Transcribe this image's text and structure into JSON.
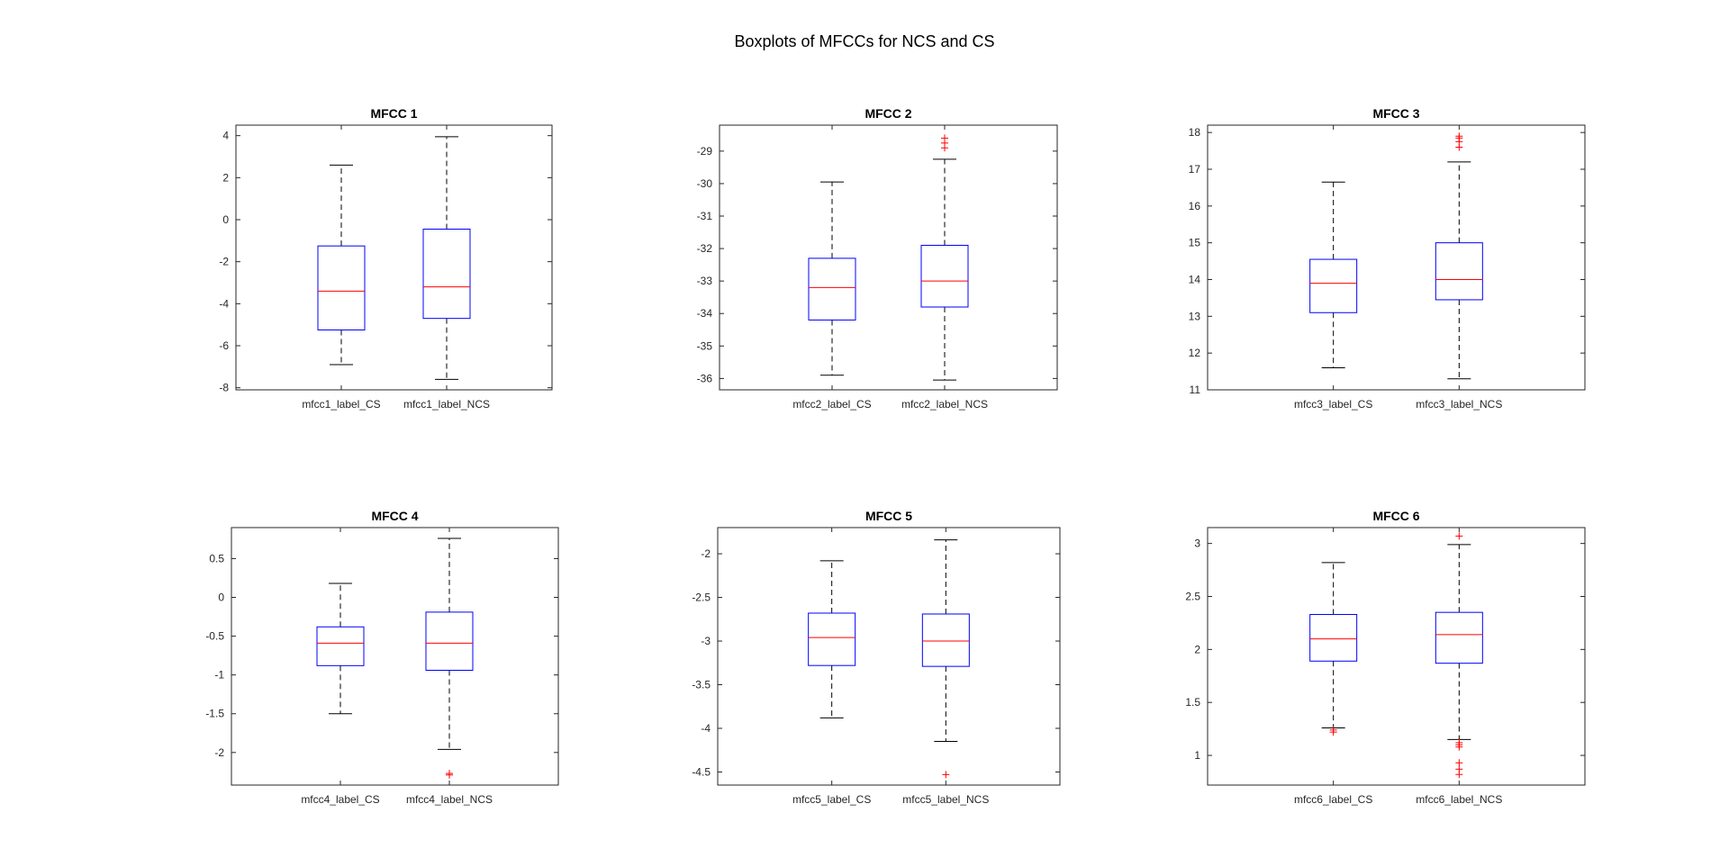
{
  "figure": {
    "suptitle": "Boxplots of MFCCs for NCS and CS"
  },
  "chart_data": [
    {
      "type": "boxplot",
      "title": "MFCC 1",
      "ylim": [
        -8.1,
        4.5
      ],
      "yticks": [
        -8,
        -6,
        -4,
        -2,
        0,
        2,
        4
      ],
      "categories": [
        "mfcc1_label_CS",
        "mfcc1_label_NCS"
      ],
      "boxes": [
        {
          "whisker_low": -6.9,
          "q1": -5.25,
          "median": -3.4,
          "q3": -1.25,
          "whisker_high": 2.6,
          "outliers": []
        },
        {
          "whisker_low": -7.6,
          "q1": -4.7,
          "median": -3.2,
          "q3": -0.45,
          "whisker_high": 3.95,
          "outliers": []
        }
      ],
      "colors": {
        "box": "#0000ff",
        "median": "#ff0000",
        "whisker": "#000000",
        "outlier": "#ff0000"
      }
    },
    {
      "type": "boxplot",
      "title": "MFCC 2",
      "ylim": [
        -36.35,
        -28.2
      ],
      "yticks": [
        -36,
        -35,
        -34,
        -33,
        -32,
        -31,
        -30,
        -29
      ],
      "categories": [
        "mfcc2_label_CS",
        "mfcc2_label_NCS"
      ],
      "boxes": [
        {
          "whisker_low": -35.9,
          "q1": -34.2,
          "median": -33.2,
          "q3": -32.3,
          "whisker_high": -29.95,
          "outliers": []
        },
        {
          "whisker_low": -36.05,
          "q1": -33.8,
          "median": -33.0,
          "q3": -31.9,
          "whisker_high": -29.25,
          "outliers": [
            -28.6,
            -28.75,
            -28.9
          ]
        }
      ],
      "colors": {
        "box": "#0000ff",
        "median": "#ff0000",
        "whisker": "#000000",
        "outlier": "#ff0000"
      }
    },
    {
      "type": "boxplot",
      "title": "MFCC 3",
      "ylim": [
        11,
        18.2
      ],
      "yticks": [
        11,
        12,
        13,
        14,
        15,
        16,
        17,
        18
      ],
      "categories": [
        "mfcc3_label_CS",
        "mfcc3_label_NCS"
      ],
      "boxes": [
        {
          "whisker_low": 11.6,
          "q1": 13.1,
          "median": 13.9,
          "q3": 14.55,
          "whisker_high": 16.65,
          "outliers": []
        },
        {
          "whisker_low": 11.3,
          "q1": 13.45,
          "median": 14.0,
          "q3": 15.0,
          "whisker_high": 17.2,
          "outliers": [
            17.6,
            17.75,
            17.85,
            17.9
          ]
        }
      ],
      "colors": {
        "box": "#0000ff",
        "median": "#ff0000",
        "whisker": "#000000",
        "outlier": "#ff0000"
      }
    },
    {
      "type": "boxplot",
      "title": "MFCC 4",
      "ylim": [
        -2.42,
        0.9
      ],
      "yticks": [
        -2,
        -1.5,
        -1,
        -0.5,
        0,
        0.5
      ],
      "categories": [
        "mfcc4_label_CS",
        "mfcc4_label_NCS"
      ],
      "boxes": [
        {
          "whisker_low": -1.5,
          "q1": -0.88,
          "median": -0.59,
          "q3": -0.38,
          "whisker_high": 0.18,
          "outliers": []
        },
        {
          "whisker_low": -1.96,
          "q1": -0.94,
          "median": -0.59,
          "q3": -0.19,
          "whisker_high": 0.76,
          "outliers": [
            -2.27,
            -2.29
          ]
        }
      ],
      "colors": {
        "box": "#0000ff",
        "median": "#ff0000",
        "whisker": "#000000",
        "outlier": "#ff0000"
      }
    },
    {
      "type": "boxplot",
      "title": "MFCC 5",
      "ylim": [
        -4.65,
        -1.7
      ],
      "yticks": [
        -4.5,
        -4,
        -3.5,
        -3,
        -2.5,
        -2
      ],
      "categories": [
        "mfcc5_label_CS",
        "mfcc5_label_NCS"
      ],
      "boxes": [
        {
          "whisker_low": -3.88,
          "q1": -3.28,
          "median": -2.96,
          "q3": -2.68,
          "whisker_high": -2.08,
          "outliers": []
        },
        {
          "whisker_low": -4.15,
          "q1": -3.29,
          "median": -3.0,
          "q3": -2.69,
          "whisker_high": -1.84,
          "outliers": [
            -4.53
          ]
        }
      ],
      "colors": {
        "box": "#0000ff",
        "median": "#ff0000",
        "whisker": "#000000",
        "outlier": "#ff0000"
      }
    },
    {
      "type": "boxplot",
      "title": "MFCC 6",
      "ylim": [
        0.72,
        3.15
      ],
      "yticks": [
        1,
        1.5,
        2,
        2.5,
        3
      ],
      "categories": [
        "mfcc6_label_CS",
        "mfcc6_label_NCS"
      ],
      "boxes": [
        {
          "whisker_low": 1.26,
          "q1": 1.89,
          "median": 2.1,
          "q3": 2.33,
          "whisker_high": 2.82,
          "outliers": [
            1.22,
            1.24
          ]
        },
        {
          "whisker_low": 1.15,
          "q1": 1.87,
          "median": 2.14,
          "q3": 2.35,
          "whisker_high": 2.99,
          "outliers": [
            3.07,
            1.12,
            1.1,
            1.08,
            0.93,
            0.87,
            0.82
          ]
        }
      ],
      "colors": {
        "box": "#0000ff",
        "median": "#ff0000",
        "whisker": "#000000",
        "outlier": "#ff0000"
      }
    }
  ]
}
